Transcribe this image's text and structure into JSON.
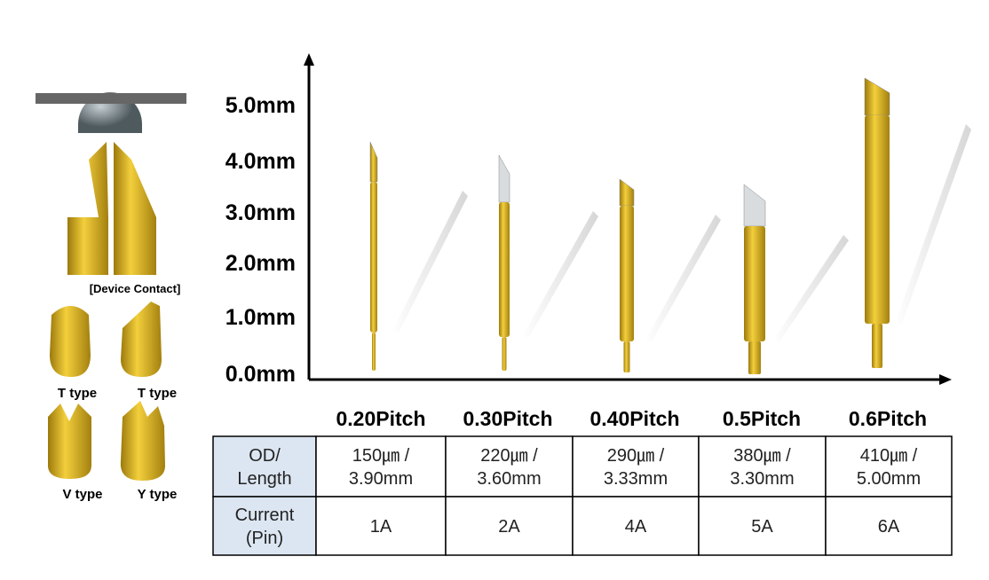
{
  "axis": {
    "labels": [
      "5.0mm",
      "4.0mm",
      "3.0mm",
      "2.0mm",
      "1.0mm",
      "0.0mm"
    ]
  },
  "device_contact": "[Device Contact]",
  "tip_types": [
    "T type",
    "T type",
    "V type",
    "Y type"
  ],
  "pitches": [
    "0.20Pitch",
    "0.30Pitch",
    "0.40Pitch",
    "0.5Pitch",
    "0.6Pitch"
  ],
  "table": {
    "rows": [
      [
        [
          "OD/",
          "Length"
        ],
        [
          "150㎛ /",
          "3.90mm"
        ],
        [
          "220㎛ /",
          "3.60mm"
        ],
        [
          "290㎛ /",
          "3.33mm"
        ],
        [
          "380㎛ /",
          "3.30mm"
        ],
        [
          "410㎛ /",
          "5.00mm"
        ]
      ],
      [
        [
          "Current",
          "(Pin)"
        ],
        [
          "1A"
        ],
        [
          "2A"
        ],
        [
          "4A"
        ],
        [
          "5A"
        ],
        [
          "6A"
        ]
      ]
    ]
  }
}
